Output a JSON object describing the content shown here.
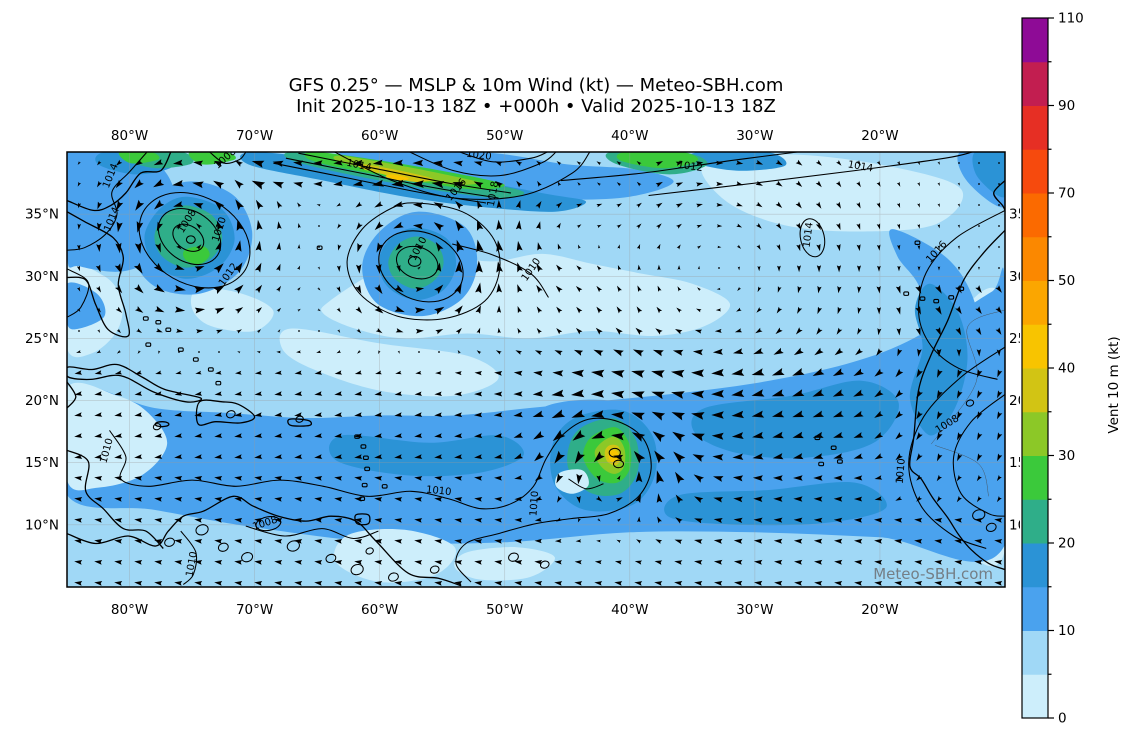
{
  "title": {
    "line1": "GFS 0.25° — MSLP & 10m Wind (kt) — Meteo-SBH.com",
    "line2": "Init 2025-10-13 18Z • +000h • Valid 2025-10-13 18Z"
  },
  "map": {
    "extent": {
      "lon_min": -85,
      "lon_max": -10,
      "lat_min": 5,
      "lat_max": 40
    },
    "x_ticks": [
      {
        "label": "80°W",
        "lon": -80
      },
      {
        "label": "70°W",
        "lon": -70
      },
      {
        "label": "60°W",
        "lon": -60
      },
      {
        "label": "50°W",
        "lon": -50
      },
      {
        "label": "40°W",
        "lon": -40
      },
      {
        "label": "30°W",
        "lon": -30
      },
      {
        "label": "20°W",
        "lon": -20
      }
    ],
    "y_ticks": [
      {
        "label": "35°N",
        "lat": 35
      },
      {
        "label": "30°N",
        "lat": 30
      },
      {
        "label": "25°N",
        "lat": 25
      },
      {
        "label": "20°N",
        "lat": 20
      },
      {
        "label": "15°N",
        "lat": 15
      },
      {
        "label": "10°N",
        "lat": 10
      }
    ],
    "watermark": "Meteo-SBH.com",
    "isobar_labels": [
      {
        "text": "1014",
        "lon": -81.3,
        "lat": 38.0,
        "rot": -68
      },
      {
        "text": "1014",
        "lon": -81.2,
        "lat": 34.5,
        "rot": -68
      },
      {
        "text": "1008",
        "lon": -72.2,
        "lat": 39.3,
        "rot": -42
      },
      {
        "text": "1008",
        "lon": -75.2,
        "lat": 34.3,
        "rot": -58
      },
      {
        "text": "1010",
        "lon": -72.6,
        "lat": 33.7,
        "rot": -72
      },
      {
        "text": "1012",
        "lon": -71.9,
        "lat": 30.0,
        "rot": -55
      },
      {
        "text": "1014",
        "lon": -61.7,
        "lat": 38.7,
        "rot": 12
      },
      {
        "text": "1020",
        "lon": -52.1,
        "lat": 39.5,
        "rot": 7
      },
      {
        "text": "1016",
        "lon": -53.7,
        "lat": 36.8,
        "rot": -50
      },
      {
        "text": "1018",
        "lon": -50.7,
        "lat": 36.6,
        "rot": -80
      },
      {
        "text": "1010",
        "lon": -56.7,
        "lat": 32.1,
        "rot": -62
      },
      {
        "text": "1010",
        "lon": -47.7,
        "lat": 30.4,
        "rot": -55
      },
      {
        "text": "1012",
        "lon": -35.2,
        "lat": 38.6,
        "rot": 8
      },
      {
        "text": "1014",
        "lon": -21.6,
        "lat": 38.6,
        "rot": 10
      },
      {
        "text": "1014",
        "lon": -25.5,
        "lat": 33.3,
        "rot": -83
      },
      {
        "text": "1016",
        "lon": -15.3,
        "lat": 31.8,
        "rot": -48
      },
      {
        "text": "1008",
        "lon": -14.5,
        "lat": 17.9,
        "rot": -32
      },
      {
        "text": "1010",
        "lon": -18.1,
        "lat": 14.3,
        "rot": -85
      },
      {
        "text": "1010",
        "lon": -55.3,
        "lat": 12.5,
        "rot": 6
      },
      {
        "text": "1010",
        "lon": -47.4,
        "lat": 11.7,
        "rot": -86
      },
      {
        "text": "1008",
        "lon": -69.1,
        "lat": 9.9,
        "rot": -18
      },
      {
        "text": "1010",
        "lon": -74.8,
        "lat": 6.8,
        "rot": -80
      },
      {
        "text": "1010",
        "lon": -81.6,
        "lat": 15.9,
        "rot": -75
      }
    ]
  },
  "colorbar": {
    "unit_label": "Vent 10 m (kt)",
    "levels": [
      0,
      5,
      10,
      15,
      20,
      25,
      30,
      35,
      40,
      45,
      50,
      60,
      70,
      80,
      90,
      100,
      110
    ],
    "colors": [
      "#cdeefb",
      "#a0d8f6",
      "#4aa2ee",
      "#2b93d6",
      "#2fae89",
      "#3bc93b",
      "#8cc827",
      "#d2c414",
      "#f8c400",
      "#fba600",
      "#fb8800",
      "#fb6a00",
      "#f64a0d",
      "#e62f24",
      "#c21e50",
      "#8e0b96"
    ],
    "major_ticks": [
      0,
      10,
      20,
      30,
      40,
      50,
      70,
      90,
      110
    ]
  },
  "quiver": {
    "grid_dx": 20,
    "grid_dy": 21,
    "vortices": [
      {
        "lon": -75.3,
        "lat": 33.1,
        "R": 6.0,
        "S": 9.0,
        "spin": 1
      },
      {
        "lon": -57.0,
        "lat": 31.0,
        "R": 5.0,
        "S": 8.0,
        "spin": 1
      },
      {
        "lon": -41.1,
        "lat": 15.5,
        "R": 4.5,
        "S": 11.0,
        "spin": 1
      },
      {
        "lon": -33.0,
        "lat": 30.5,
        "R": 12.0,
        "S": 5.0,
        "spin": -1
      },
      {
        "lon": -46.0,
        "lat": 33.5,
        "R": 5.0,
        "S": 3.5,
        "spin": -1
      }
    ]
  },
  "chart_data": {
    "type": "heatmap",
    "title": "GFS 0.25° — MSLP & 10m Wind (kt) — Meteo-SBH.com",
    "subtitle": "Init 2025-10-13 18Z • +000h • Valid 2025-10-13 18Z",
    "x_axis": {
      "tick_labels": [
        "80°W",
        "70°W",
        "60°W",
        "50°W",
        "40°W",
        "30°W",
        "20°W"
      ],
      "range_lon": [
        -85,
        -10
      ]
    },
    "y_axis": {
      "tick_labels": [
        "35°N",
        "30°N",
        "25°N",
        "20°N",
        "15°N",
        "10°N"
      ],
      "range_lat": [
        5,
        40
      ]
    },
    "colorbar": {
      "label": "Vent 10 m (kt)",
      "tick_labels": [
        0,
        10,
        20,
        30,
        40,
        50,
        70,
        90,
        110
      ],
      "levels": [
        0,
        5,
        10,
        15,
        20,
        25,
        30,
        35,
        40,
        45,
        50,
        60,
        70,
        80,
        90,
        100,
        110
      ]
    },
    "pressure_contours_hpa": [
      1008,
      1010,
      1012,
      1014,
      1016,
      1018,
      1020
    ],
    "features": [
      {
        "name": "surface-low",
        "lon": -75.3,
        "lat": 33.1,
        "innermost_isobar_hpa": 1008
      },
      {
        "name": "surface-low",
        "lon": -57.0,
        "lat": 31.0,
        "innermost_isobar_hpa": 1010
      },
      {
        "name": "tropical-cyclone",
        "lon": -41.2,
        "lat": 15.5,
        "innermost_isobar_hpa": 1008,
        "peak_wind_shading_kt": "40-45"
      },
      {
        "name": "frontal-wind-band",
        "lon_span": [
          -66,
          -48
        ],
        "lat_span": [
          36,
          40
        ],
        "peak_wind_shading_kt": "40-45"
      }
    ]
  }
}
